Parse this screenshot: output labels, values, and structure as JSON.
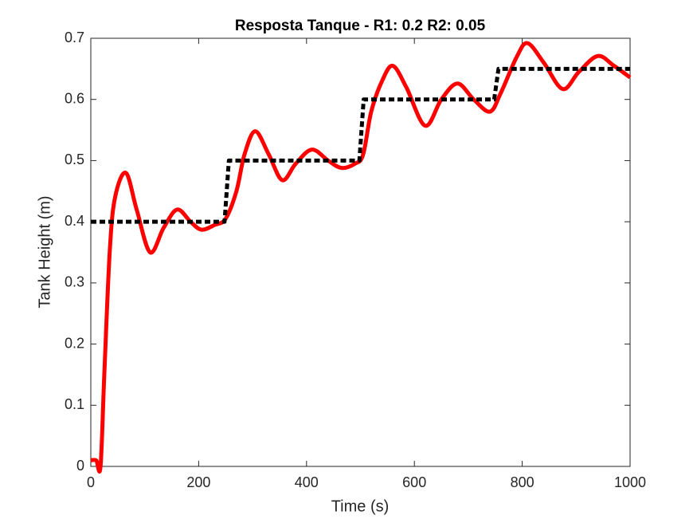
{
  "chart_data": {
    "type": "line",
    "title": "Resposta Tanque - R1: 0.2  R2: 0.05",
    "xlabel": "Time (s)",
    "ylabel": "Tank Height (m)",
    "xlim": [
      0,
      1000
    ],
    "xticks": [
      0,
      200,
      400,
      600,
      800,
      1000
    ],
    "ylim": [
      0,
      0.7
    ],
    "yticks": [
      0,
      0.1,
      0.2,
      0.3,
      0.4,
      0.5,
      0.6,
      0.7
    ],
    "series": [
      {
        "color": "#ff0000",
        "dashed": false,
        "x": [
          0,
          10,
          18,
          25,
          35,
          45,
          65,
          85,
          110,
          135,
          160,
          185,
          205,
          230,
          250,
          270,
          285,
          305,
          330,
          355,
          380,
          410,
          440,
          465,
          490,
          505,
          520,
          540,
          560,
          585,
          620,
          650,
          680,
          710,
          740,
          760,
          790,
          810,
          840,
          875,
          905,
          940,
          970,
          1000
        ],
        "values": [
          0.01,
          0.01,
          0,
          0.15,
          0.35,
          0.44,
          0.48,
          0.42,
          0.35,
          0.39,
          0.42,
          0.4,
          0.387,
          0.395,
          0.405,
          0.45,
          0.51,
          0.548,
          0.51,
          0.468,
          0.495,
          0.518,
          0.5,
          0.488,
          0.495,
          0.51,
          0.58,
          0.63,
          0.655,
          0.62,
          0.557,
          0.6,
          0.626,
          0.6,
          0.58,
          0.61,
          0.67,
          0.692,
          0.66,
          0.617,
          0.645,
          0.671,
          0.655,
          0.636
        ]
      },
      {
        "color": "#000000",
        "dashed": true,
        "x": [
          0,
          248,
          256,
          498,
          506,
          748,
          756,
          1000
        ],
        "values": [
          0.4,
          0.4,
          0.5,
          0.5,
          0.6,
          0.6,
          0.65,
          0.65
        ]
      }
    ]
  }
}
